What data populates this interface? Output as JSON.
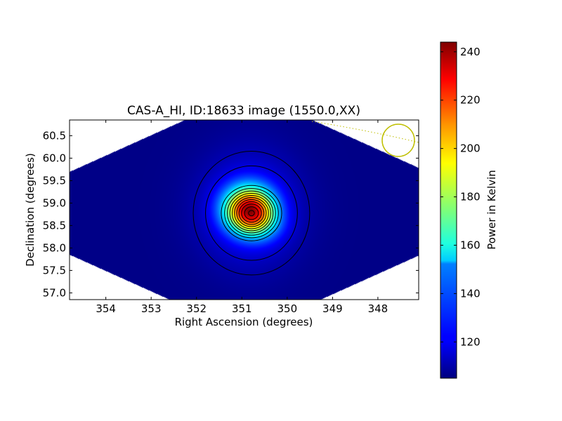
{
  "chart_data": {
    "type": "heatmap",
    "title": "CAS-A_HI, ID:18633 image (1550.0,XX)",
    "xlabel": "Right Ascension (degrees)",
    "ylabel": "Declination (degrees)",
    "x_direction": "decreasing",
    "xlim": [
      354.8,
      347.1
    ],
    "ylim": [
      56.85,
      60.85
    ],
    "x_ticks": [
      354,
      353,
      352,
      351,
      350,
      349,
      348
    ],
    "y_ticks": [
      57.0,
      57.5,
      58.0,
      58.5,
      59.0,
      59.5,
      60.0,
      60.5
    ],
    "x_tick_labels": [
      "354",
      "353",
      "352",
      "351",
      "350",
      "349",
      "348"
    ],
    "y_tick_labels": [
      "57.0",
      "57.5",
      "58.0",
      "58.5",
      "59.0",
      "59.5",
      "60.0",
      "60.5"
    ],
    "peak": {
      "ra": 350.85,
      "dec": 58.87,
      "value": 243
    },
    "background_value": 106,
    "colormap": "jet",
    "contour_color": "#000000",
    "beam_marker_color": "#bfbf00",
    "colorbar": {
      "label": "Power in Kelvin",
      "range": [
        105,
        244
      ],
      "ticks": [
        120,
        140,
        160,
        180,
        200,
        220,
        240
      ],
      "tick_labels": [
        "120",
        "140",
        "160",
        "180",
        "200",
        "220",
        "240"
      ]
    }
  }
}
